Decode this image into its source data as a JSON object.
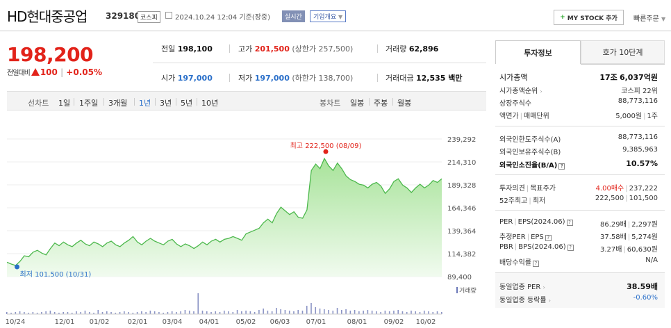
{
  "header": {
    "name": "HD현대중공업",
    "code": "329180",
    "market": "코스피",
    "datetime": "2024.10.24 12:04 기준(장중)",
    "realtime": "실시간",
    "company_info": "기업개요",
    "mystock": "MY STOCK 추가",
    "quick_order": "빠른주문"
  },
  "price": {
    "current": "198,200",
    "change_label": "전일대비",
    "change": "100",
    "change_pct": "+0.05%"
  },
  "summary": {
    "prev_label": "전일",
    "prev": "198,100",
    "high_label": "고가",
    "high": "201,500",
    "upper_limit": "(상한가 257,500)",
    "volume_label": "거래량",
    "volume": "62,896",
    "open_label": "시가",
    "open": "197,000",
    "low_label": "저가",
    "low": "197,000",
    "lower_limit": "(하한가 138,700)",
    "amount_label": "거래대금",
    "amount": "12,535 백만"
  },
  "periods": {
    "line_label": "선차트",
    "line_items": [
      "1일",
      "1주일",
      "3개월",
      "1년",
      "3년",
      "5년",
      "10년"
    ],
    "selected": "1년",
    "candle_label": "봉차트",
    "candle_items": [
      "일봉",
      "주봉",
      "월봉"
    ]
  },
  "chart_data": {
    "type": "area",
    "y_ticks": [
      "239,292",
      "214,310",
      "189,328",
      "164,346",
      "139,364",
      "114,382",
      "89,400"
    ],
    "x_ticks": [
      "10/24",
      "12/01",
      "01/02",
      "02/01",
      "03/04",
      "04/01",
      "05/02",
      "06/03",
      "07/01",
      "08/01",
      "09/02",
      "10/02"
    ],
    "ylim": [
      89400,
      239292
    ],
    "high_annotation": "최고 222,500 (08/09)",
    "low_annotation": "최저 101,500 (10/31)",
    "volume_label": "거래량",
    "series": [
      {
        "values": [
          105000,
          103000,
          101500,
          106000,
          112000,
          111000,
          116000,
          118000,
          115000,
          113000,
          120000,
          126000,
          123000,
          127000,
          124000,
          122000,
          126000,
          129000,
          125000,
          123000,
          127000,
          125000,
          122000,
          126000,
          128000,
          124000,
          122000,
          126000,
          129000,
          133000,
          127000,
          124000,
          128000,
          131000,
          128000,
          126000,
          124000,
          128000,
          130000,
          125000,
          122000,
          125000,
          123000,
          120000,
          123000,
          127000,
          124000,
          128000,
          130000,
          127000,
          130000,
          131000,
          133000,
          131000,
          129000,
          136000,
          138000,
          140000,
          142000,
          148000,
          152000,
          148000,
          158000,
          165000,
          161000,
          157000,
          160000,
          154000,
          153000,
          162000,
          205000,
          212000,
          207000,
          218000,
          210000,
          205000,
          213000,
          207000,
          199000,
          195000,
          193000,
          190000,
          189000,
          186000,
          190000,
          192000,
          188000,
          180000,
          185000,
          193000,
          196000,
          189000,
          186000,
          181000,
          186000,
          190000,
          186000,
          189000,
          194000,
          192000,
          196000
        ],
        "volumes": [
          3,
          2,
          3,
          4,
          3,
          2,
          3,
          2,
          3,
          4,
          5,
          3,
          2,
          3,
          3,
          2,
          4,
          3,
          5,
          3,
          2,
          6,
          3,
          4,
          3,
          2,
          3,
          4,
          3,
          2,
          3,
          4,
          3,
          5,
          4,
          3,
          2,
          3,
          4,
          3,
          4,
          6,
          5,
          4,
          30,
          5,
          4,
          3,
          4,
          3,
          5,
          4,
          3,
          6,
          4,
          5,
          4,
          3,
          6,
          8,
          5,
          4,
          9,
          7,
          6,
          5,
          4,
          6,
          5,
          12,
          16,
          10,
          8,
          7,
          6,
          5,
          9,
          6,
          7,
          5,
          6,
          4,
          5,
          6,
          5,
          4,
          3,
          5,
          4,
          5,
          6,
          4,
          3,
          5,
          4,
          3,
          5,
          4,
          3,
          4,
          3
        ]
      }
    ],
    "color": "#4cb84c"
  },
  "tabs": {
    "invest": "투자정보",
    "hoga": "호가 10단계"
  },
  "invest": {
    "mktcap_label": "시가총액",
    "mktcap_a": "17조",
    "mktcap_b": "6,037억원",
    "rank_label": "시가총액순위",
    "rank": "코스피 22위",
    "shares_label": "상장주식수",
    "shares": "88,773,116",
    "par_label": "액면가",
    "unit_label": "매매단위",
    "par": "5,000원",
    "unit": "1주",
    "flimit_label": "외국인한도주식수(A)",
    "flimit": "88,773,116",
    "fhold_label": "외국인보유주식수(B)",
    "fhold": "9,385,963",
    "fratio_label": "외국인소진율(B/A)",
    "fratio": "10.57%",
    "opinion_label": "투자의견",
    "target_label": "목표주가",
    "opinion": "4.00매수",
    "target": "237,222",
    "w52_label": "52주최고",
    "w52_low_label": "최저",
    "w52_high": "222,500",
    "w52_low": "101,500",
    "per_label": "PER",
    "eps_label": "EPS(2024.06)",
    "per": "86.29배",
    "eps": "2,297원",
    "fper_label": "추정PER",
    "feps_label": "EPS",
    "fper": "37.58배",
    "feps": "5,274원",
    "pbr_label": "PBR",
    "bps_label": "BPS(2024.06)",
    "pbr": "3.27배",
    "bps": "60,630원",
    "div_label": "배당수익률",
    "div": "N/A",
    "ind_per_label": "동일업종 PER",
    "ind_per": "38.59배",
    "ind_chg_label": "동일업종 등락률",
    "ind_chg": "-0.60%",
    "colors": {
      "up": "#e2231a",
      "down": "#2a6fc9"
    }
  }
}
